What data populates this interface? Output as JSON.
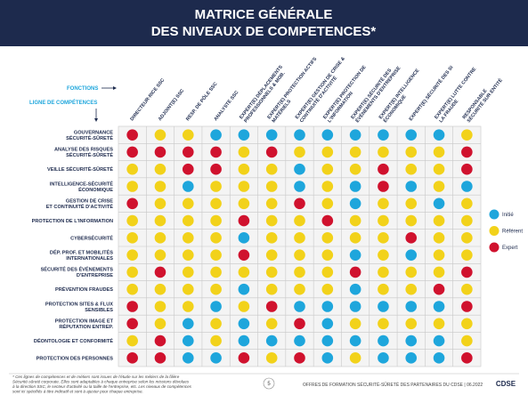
{
  "header": {
    "title_line1": "MATRICE GÉNÉRALE",
    "title_line2": "DES NIVEAUX DE COMPETENCES*"
  },
  "axis_labels": {
    "columns": "FONCTIONS",
    "rows": "LIGNE DE COMPÉTENCES"
  },
  "legend": [
    {
      "label": "Initié",
      "color": "#1ea6dc"
    },
    {
      "label": "Référent",
      "color": "#f2d21a"
    },
    {
      "label": "Expert",
      "color": "#d0122e"
    }
  ],
  "table": {
    "columns": [
      "DIRECTEUR·RICE SSC",
      "ADJOINT(E) SSC",
      "RESP. DE PÔLE SSC",
      "ANALYSTE SSC",
      [
        "EXPERT(E) DÉPLACEMENTS",
        "PROFESSIONNELS & MOB."
      ],
      [
        "EXPERT(E) PROTECTION ACTIFS",
        "MATÉRIELS"
      ],
      [
        "EXPERT(E) GESTION DE CRISE &",
        "CONTINUITÉ D'ACTIVITÉ"
      ],
      [
        "EXPERT(E) PROTECTION DE",
        "L'INFORMATION"
      ],
      [
        "EXPERT(E) SÉCURITÉ DES",
        "ÉVÉNEMENTS D'ENTREPRISE"
      ],
      [
        "EXPERT(E) INTELLIGENCE",
        "ÉCONOMIQUE"
      ],
      "EXPERT(E) SÉCURITÉ DES SI",
      [
        "EXPERT(E) LUTTE CONTRE",
        "LA FRAUDE"
      ],
      [
        "RESPONSABLE",
        "SÉCURITÉ SUR ENTITÉ"
      ]
    ],
    "rows": [
      {
        "label": [
          "GOUVERNANCE",
          "SÉCURITÉ-SÛRETÉ"
        ],
        "levels": [
          "Expert",
          "Référent",
          "Référent",
          "Initié",
          "Initié",
          "Initié",
          "Initié",
          "Initié",
          "Initié",
          "Initié",
          "Initié",
          "Initié",
          "Référent"
        ]
      },
      {
        "label": [
          "ANALYSE DES RISQUES",
          "SÉCURITÉ-SÛRETÉ"
        ],
        "levels": [
          "Expert",
          "Expert",
          "Expert",
          "Expert",
          "Référent",
          "Expert",
          "Référent",
          "Référent",
          "Référent",
          "Référent",
          "Référent",
          "Référent",
          "Expert"
        ]
      },
      {
        "label": [
          "VEILLE SÉCURITÉ-SÛRETÉ"
        ],
        "levels": [
          "Référent",
          "Référent",
          "Expert",
          "Expert",
          "Référent",
          "Référent",
          "Initié",
          "Référent",
          "Référent",
          "Expert",
          "Référent",
          "Référent",
          "Expert"
        ]
      },
      {
        "label": [
          "INTELLIGENCE-SÉCURITÉ",
          "ÉCONOMIQUE"
        ],
        "levels": [
          "Référent",
          "Référent",
          "Initié",
          "Référent",
          "Référent",
          "Référent",
          "Initié",
          "Référent",
          "Initié",
          "Expert",
          "Initié",
          "Référent",
          "Initié"
        ]
      },
      {
        "label": [
          "GESTION DE CRISE",
          "ET CONTINUITÉ D'ACTIVITÉ"
        ],
        "levels": [
          "Expert",
          "Référent",
          "Référent",
          "Référent",
          "Référent",
          "Référent",
          "Expert",
          "Référent",
          "Initié",
          "Référent",
          "Référent",
          "Initié",
          "Référent"
        ]
      },
      {
        "label": [
          "PROTECTION DE L'INFORMATION"
        ],
        "levels": [
          "Référent",
          "Référent",
          "Référent",
          "Référent",
          "Expert",
          "Référent",
          "Référent",
          "Expert",
          "Référent",
          "Référent",
          "Référent",
          "Référent",
          "Référent"
        ]
      },
      {
        "label": [
          "CYBERSÉCURITÉ"
        ],
        "levels": [
          "Référent",
          "Référent",
          "Référent",
          "Référent",
          "Initié",
          "Référent",
          "Référent",
          "Référent",
          "Référent",
          "Référent",
          "Expert",
          "Référent",
          "Référent"
        ]
      },
      {
        "label": [
          "DÉP. PROF. ET MOBILITÉS",
          "INTERNATIONALES"
        ],
        "levels": [
          "Référent",
          "Référent",
          "Référent",
          "Référent",
          "Expert",
          "Référent",
          "Référent",
          "Référent",
          "Initié",
          "Référent",
          "Initié",
          "Référent",
          "Référent"
        ]
      },
      {
        "label": [
          "SÉCURITÉ DES ÉVÉNEMENTS",
          "D'ENTREPRISE"
        ],
        "levels": [
          "Référent",
          "Expert",
          "Référent",
          "Référent",
          "Référent",
          "Référent",
          "Référent",
          "Référent",
          "Expert",
          "Référent",
          "Référent",
          "Référent",
          "Expert"
        ]
      },
      {
        "label": [
          "PRÉVENTION FRAUDES"
        ],
        "levels": [
          "Référent",
          "Référent",
          "Référent",
          "Référent",
          "Initié",
          "Référent",
          "Référent",
          "Référent",
          "Initié",
          "Référent",
          "Référent",
          "Expert",
          "Référent"
        ]
      },
      {
        "label": [
          "PROTECTION SITES & FLUX",
          "SENSIBLES"
        ],
        "levels": [
          "Expert",
          "Référent",
          "Référent",
          "Initié",
          "Référent",
          "Expert",
          "Initié",
          "Initié",
          "Initié",
          "Initié",
          "Initié",
          "Initié",
          "Expert"
        ]
      },
      {
        "label": [
          "PROTECTION IMAGE ET",
          "RÉPUTATION ENTREP."
        ],
        "levels": [
          "Expert",
          "Référent",
          "Initié",
          "Référent",
          "Initié",
          "Référent",
          "Expert",
          "Initié",
          "Référent",
          "Référent",
          "Référent",
          "Référent",
          "Référent"
        ]
      },
      {
        "label": [
          "DÉONTOLOGIE ET CONFORMITÉ"
        ],
        "levels": [
          "Référent",
          "Expert",
          "Initié",
          "Référent",
          "Initié",
          "Initié",
          "Initié",
          "Initié",
          "Initié",
          "Initié",
          "Initié",
          "Initié",
          "Référent"
        ]
      },
      {
        "label": [
          "PROTECTION DES PERSONNES"
        ],
        "levels": [
          "Expert",
          "Expert",
          "Initié",
          "Initié",
          "Expert",
          "Référent",
          "Expert",
          "Initié",
          "Référent",
          "Initié",
          "Initié",
          "Initié",
          "Expert"
        ]
      }
    ]
  },
  "footer": {
    "note": [
      "* Ces lignes de compétences et de métiers sont issues de l'étude sur les métiers de la filière",
      "Sécurité-sûreté corporate. Elles sont adaptables à chaque entreprise selon les missions dévolues",
      "à la direction SSC, le secteur d'activité ou la taille de l'entreprise, etc. Les niveaux de compétences",
      "sont ici spécifiés à titre indicatif et sont à ajuster pour chaque entreprise."
    ],
    "page_number": "5",
    "publication": "OFFRES DE FORMATION SÉCURITÉ-SÛRETÉ DES PARTENAIRES DU CDSE | 06.2022",
    "logo": "CDSE"
  }
}
